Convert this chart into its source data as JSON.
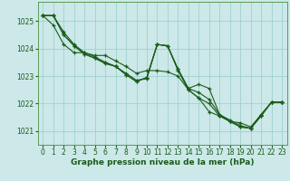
{
  "xlabel": "Graphe pression niveau de la mer (hPa)",
  "background_color": "#cce8e8",
  "grid_color": "#99cccc",
  "line_color": "#1a5c1a",
  "hours": [
    0,
    1,
    2,
    3,
    4,
    5,
    6,
    7,
    8,
    9,
    10,
    11,
    12,
    13,
    14,
    15,
    16,
    17,
    18,
    19,
    20,
    21,
    22,
    23
  ],
  "series": [
    [
      1025.2,
      1025.2,
      1024.6,
      1024.15,
      1023.85,
      1023.7,
      1023.5,
      1023.35,
      1023.1,
      1022.85,
      1022.9,
      1024.15,
      1024.1,
      1023.2,
      1022.5,
      1022.2,
      1022.0,
      1021.55,
      1021.35,
      1021.3,
      1021.15,
      1021.6,
      1022.05,
      1022.05
    ],
    [
      1025.2,
      1025.2,
      1024.5,
      1024.1,
      1023.8,
      1023.65,
      1023.5,
      1023.35,
      1023.05,
      1022.8,
      1022.95,
      1024.15,
      1024.1,
      1023.25,
      1022.55,
      1022.7,
      1022.55,
      1021.6,
      1021.4,
      1021.2,
      1021.1,
      1021.6,
      1022.05,
      1022.05
    ],
    [
      1025.2,
      1025.2,
      1024.5,
      1024.1,
      1023.8,
      1023.65,
      1023.45,
      1023.35,
      1023.05,
      1022.8,
      1022.95,
      1024.15,
      1024.1,
      1023.25,
      1022.55,
      1022.4,
      1022.15,
      1021.6,
      1021.35,
      1021.15,
      1021.1,
      1021.55,
      1022.05,
      1022.05
    ],
    [
      1025.2,
      1024.85,
      1024.15,
      1023.85,
      1023.85,
      1023.75,
      1023.75,
      1023.55,
      1023.35,
      1023.1,
      1023.2,
      1023.2,
      1023.15,
      1023.0,
      1022.5,
      1022.2,
      1021.7,
      1021.55,
      1021.35,
      1021.15,
      1021.1,
      1021.55,
      1022.05,
      1022.05
    ]
  ],
  "ylim": [
    1020.5,
    1025.7
  ],
  "yticks": [
    1021,
    1022,
    1023,
    1024,
    1025
  ],
  "xticks": [
    0,
    1,
    2,
    3,
    4,
    5,
    6,
    7,
    8,
    9,
    10,
    11,
    12,
    13,
    14,
    15,
    16,
    17,
    18,
    19,
    20,
    21,
    22,
    23
  ],
  "tick_fontsize": 5.5,
  "label_fontsize": 6.5
}
